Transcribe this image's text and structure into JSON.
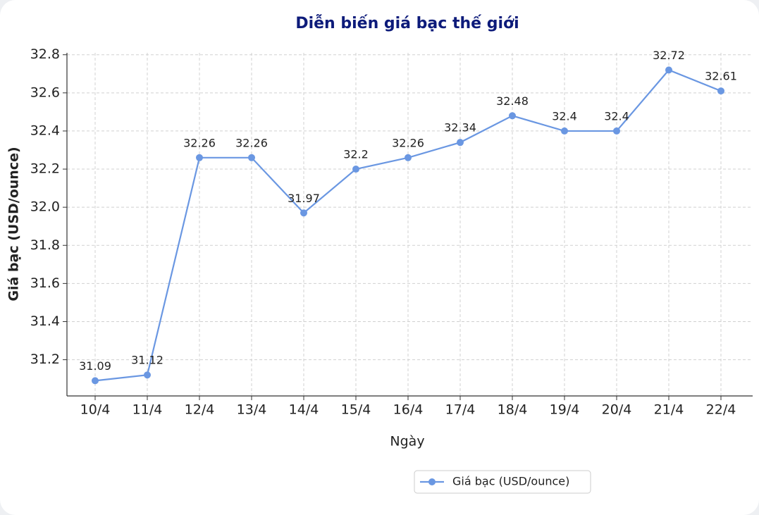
{
  "chart_data": {
    "type": "line",
    "title": "Diễn biến giá bạc thế giới",
    "x_label": "Ngày",
    "y_label": "Giá bạc (USD/ounce)",
    "categories": [
      "10/4",
      "11/4",
      "12/4",
      "13/4",
      "14/4",
      "15/4",
      "16/4",
      "17/4",
      "18/4",
      "19/4",
      "20/4",
      "21/4",
      "22/4"
    ],
    "series": [
      {
        "name": "Giá bạc (USD/ounce)",
        "color": "#6a97e2",
        "values": [
          31.09,
          31.12,
          32.26,
          32.26,
          31.97,
          32.2,
          32.26,
          32.34,
          32.48,
          32.4,
          32.4,
          32.72,
          32.61
        ]
      }
    ],
    "ylim": [
      31.01,
      32.81
    ],
    "yticks": [
      31.2,
      31.4,
      31.6,
      31.8,
      {
        "value": 32,
        "label": "32.0"
      },
      32.2,
      32.4,
      32.6,
      32.8
    ],
    "grid": true,
    "legend": "bottom"
  }
}
